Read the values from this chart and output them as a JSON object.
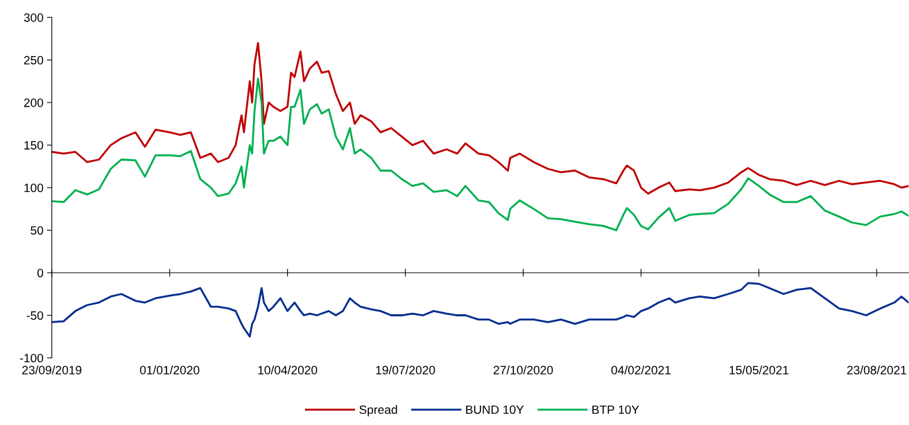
{
  "chart_data": {
    "type": "line",
    "x": [
      "2019-09-23",
      "2019-10-03",
      "2019-10-13",
      "2019-10-23",
      "2019-11-02",
      "2019-11-12",
      "2019-11-21",
      "2019-12-03",
      "2019-12-11",
      "2019-12-20",
      "2020-01-01",
      "2020-01-10",
      "2020-01-19",
      "2020-01-27",
      "2020-02-05",
      "2020-02-11",
      "2020-02-20",
      "2020-02-26",
      "2020-03-02",
      "2020-03-04",
      "2020-03-09",
      "2020-03-11",
      "2020-03-13",
      "2020-03-16",
      "2020-03-19",
      "2020-03-21",
      "2020-03-25",
      "2020-03-29",
      "2020-04-04",
      "2020-04-10",
      "2020-04-13",
      "2020-04-16",
      "2020-04-21",
      "2020-04-24",
      "2020-04-29",
      "2020-05-05",
      "2020-05-09",
      "2020-05-15",
      "2020-05-21",
      "2020-05-27",
      "2020-06-02",
      "2020-06-06",
      "2020-06-11",
      "2020-06-20",
      "2020-06-28",
      "2020-07-07",
      "2020-07-16",
      "2020-07-25",
      "2020-08-03",
      "2020-08-12",
      "2020-08-23",
      "2020-09-01",
      "2020-09-08",
      "2020-09-19",
      "2020-09-28",
      "2020-10-06",
      "2020-10-14",
      "2020-10-16",
      "2020-10-24",
      "2020-11-05",
      "2020-11-17",
      "2020-11-28",
      "2020-12-10",
      "2020-12-22",
      "2021-01-03",
      "2021-01-14",
      "2021-01-20",
      "2021-01-23",
      "2021-01-29",
      "2021-02-04",
      "2021-02-10",
      "2021-02-19",
      "2021-02-28",
      "2021-03-05",
      "2021-03-17",
      "2021-03-26",
      "2021-04-07",
      "2021-04-19",
      "2021-04-30",
      "2021-05-06",
      "2021-05-15",
      "2021-05-24",
      "2021-06-05",
      "2021-06-16",
      "2021-06-28",
      "2021-07-10",
      "2021-07-22",
      "2021-08-02",
      "2021-08-14",
      "2021-08-26",
      "2021-09-07",
      "2021-09-13",
      "2021-09-19"
    ],
    "series": [
      {
        "name": "Spread",
        "color": "#c00000",
        "values": [
          142,
          140,
          142,
          130,
          133,
          150,
          158,
          165,
          148,
          168,
          165,
          162,
          165,
          135,
          140,
          130,
          135,
          150,
          185,
          165,
          225,
          200,
          245,
          270,
          225,
          175,
          200,
          195,
          190,
          195,
          235,
          230,
          260,
          225,
          240,
          248,
          235,
          237,
          210,
          190,
          200,
          175,
          185,
          178,
          165,
          170,
          160,
          150,
          155,
          140,
          145,
          140,
          152,
          140,
          138,
          130,
          120,
          135,
          140,
          130,
          122,
          118,
          120,
          112,
          110,
          105,
          120,
          126,
          120,
          100,
          93,
          100,
          106,
          96,
          98,
          97,
          100,
          106,
          118,
          123,
          115,
          110,
          108,
          103,
          108,
          103,
          108,
          104,
          106,
          108,
          104,
          100,
          102
        ]
      },
      {
        "name": "BUND 10Y",
        "color": "#002d8f",
        "values": [
          -58,
          -57,
          -45,
          -38,
          -35,
          -28,
          -25,
          -33,
          -35,
          -30,
          -27,
          -25,
          -22,
          -18,
          -40,
          -40,
          -42,
          -45,
          -60,
          -65,
          -75,
          -60,
          -55,
          -40,
          -18,
          -35,
          -45,
          -40,
          -30,
          -45,
          -40,
          -35,
          -45,
          -50,
          -48,
          -50,
          -48,
          -45,
          -50,
          -45,
          -30,
          -35,
          -40,
          -43,
          -45,
          -50,
          -50,
          -48,
          -50,
          -45,
          -48,
          -50,
          -50,
          -55,
          -55,
          -60,
          -58,
          -60,
          -55,
          -55,
          -58,
          -55,
          -60,
          -55,
          -55,
          -55,
          -52,
          -50,
          -52,
          -45,
          -42,
          -35,
          -30,
          -35,
          -30,
          -28,
          -30,
          -25,
          -20,
          -12,
          -13,
          -18,
          -25,
          -20,
          -18,
          -30,
          -42,
          -45,
          -50,
          -42,
          -35,
          -28,
          -35
        ]
      },
      {
        "name": "BTP 10Y",
        "color": "#00b050",
        "values": [
          84,
          83,
          97,
          92,
          98,
          122,
          133,
          132,
          113,
          138,
          138,
          137,
          143,
          110,
          100,
          90,
          93,
          105,
          125,
          100,
          150,
          140,
          190,
          228,
          200,
          140,
          155,
          155,
          160,
          150,
          195,
          195,
          215,
          175,
          192,
          198,
          187,
          192,
          160,
          145,
          170,
          140,
          145,
          135,
          120,
          120,
          110,
          102,
          105,
          95,
          97,
          90,
          102,
          85,
          83,
          70,
          62,
          75,
          85,
          75,
          64,
          63,
          60,
          57,
          55,
          50,
          68,
          76,
          68,
          55,
          51,
          65,
          76,
          61,
          68,
          69,
          70,
          81,
          98,
          111,
          102,
          92,
          83,
          83,
          90,
          73,
          66,
          59,
          56,
          66,
          69,
          72,
          67
        ]
      }
    ],
    "xlim": [
      "2019-09-23",
      "2021-09-19"
    ],
    "xticks": [
      {
        "value": "2019-09-23",
        "label": "23/09/2019"
      },
      {
        "value": "2020-01-01",
        "label": "01/01/2020"
      },
      {
        "value": "2020-04-10",
        "label": "10/04/2020"
      },
      {
        "value": "2020-07-19",
        "label": "19/07/2020"
      },
      {
        "value": "2020-10-27",
        "label": "27/10/2020"
      },
      {
        "value": "2021-02-04",
        "label": "04/02/2021"
      },
      {
        "value": "2021-05-15",
        "label": "15/05/2021"
      },
      {
        "value": "2021-08-23",
        "label": "23/08/2021"
      }
    ],
    "ylim": [
      -100,
      300
    ],
    "yticks": [
      -100,
      -50,
      0,
      50,
      100,
      150,
      200,
      250,
      300
    ],
    "legend": "bottom",
    "line_style": "solid",
    "marker": "none"
  }
}
